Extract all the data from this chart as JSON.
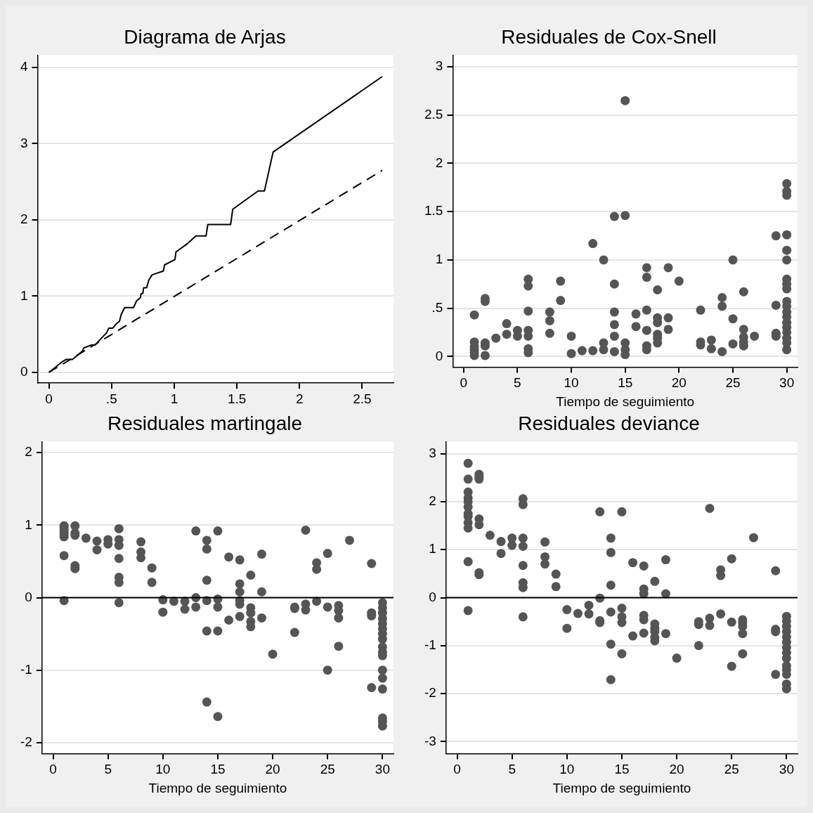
{
  "chart_data": [
    {
      "type": "line",
      "title": "Diagrama de Arjas",
      "xlim": [
        -0.09,
        2.75
      ],
      "ylim": [
        -0.14,
        4.16
      ],
      "xticks": [
        0,
        {
          "value": 0.5,
          "label": ".5"
        },
        1,
        1.5,
        2,
        2.5
      ],
      "yticks": [
        0,
        1,
        2,
        3,
        4
      ],
      "grid": "y",
      "marker": "none",
      "series": [
        {
          "color": "#000000",
          "line_style": "solid",
          "x": [
            0,
            0.075,
            0.106,
            0.136,
            0.187,
            0.217,
            0.268,
            0.278,
            0.34,
            0.37,
            0.42,
            0.46,
            0.478,
            0.508,
            0.539,
            0.563,
            0.577,
            0.604,
            0.675,
            0.7,
            0.73,
            0.736,
            0.75,
            0.756,
            0.78,
            0.797,
            0.823,
            0.913,
            0.923,
            1.006,
            1.014,
            1.106,
            1.173,
            1.254,
            1.268,
            1.45,
            1.467,
            1.67,
            1.72,
            1.789,
            2.66
          ],
          "values": [
            0,
            0.1,
            0.14,
            0.17,
            0.17,
            0.21,
            0.28,
            0.32,
            0.36,
            0.36,
            0.45,
            0.52,
            0.58,
            0.58,
            0.64,
            0.67,
            0.76,
            0.85,
            0.85,
            0.94,
            0.98,
            1.03,
            1.04,
            1.11,
            1.11,
            1.21,
            1.28,
            1.33,
            1.41,
            1.48,
            1.58,
            1.69,
            1.79,
            1.79,
            1.94,
            1.94,
            2.14,
            2.38,
            2.38,
            2.89,
            3.88
          ]
        },
        {
          "color": "#000000",
          "line_style": "dashed",
          "x": [
            0,
            2.66
          ],
          "values": [
            0,
            2.65
          ]
        }
      ]
    },
    {
      "type": "scatter",
      "title": "Residuales de Cox-Snell",
      "xlabel": "Tiempo de seguimiento",
      "xlim": [
        -1,
        31
      ],
      "ylim": [
        -0.11,
        3.12
      ],
      "xticks": [
        0,
        5,
        10,
        15,
        20,
        25,
        30
      ],
      "yticks": [
        0,
        {
          "value": 0.5,
          "label": ".5"
        },
        1,
        1.5,
        2,
        2.5,
        3
      ],
      "grid": "y",
      "marker": "circle",
      "series": [
        {
          "color": "#555555",
          "x": [
            1,
            1,
            1,
            1,
            1,
            1,
            2,
            2,
            2,
            2,
            2,
            3,
            4,
            4,
            5,
            5,
            6,
            6,
            6,
            6,
            6,
            6,
            6,
            8,
            8,
            8,
            9,
            9,
            10,
            10,
            11,
            12,
            12,
            13,
            13,
            13,
            14,
            14,
            14,
            14,
            14,
            14,
            15,
            15,
            15,
            15,
            15,
            16,
            16,
            17,
            17,
            17,
            17,
            17,
            17,
            18,
            18,
            18,
            18,
            18,
            18,
            19,
            19,
            19,
            20,
            22,
            22,
            22,
            23,
            23,
            24,
            24,
            24,
            25,
            25,
            25,
            26,
            26,
            26,
            26,
            26,
            27,
            29,
            29,
            29,
            29,
            30,
            30,
            30,
            30,
            30,
            30,
            30,
            30,
            30,
            30,
            30,
            30,
            30,
            30,
            30,
            30,
            30,
            30,
            30
          ],
          "values": [
            0.43,
            0.15,
            0.1,
            0.07,
            0.04,
            0.01,
            0.6,
            0.57,
            0.14,
            0.11,
            0.01,
            0.19,
            0.34,
            0.23,
            0.27,
            0.21,
            0.8,
            0.73,
            0.47,
            0.27,
            0.21,
            0.08,
            0.04,
            0.46,
            0.37,
            0.24,
            0.78,
            0.58,
            0.21,
            0.03,
            0.06,
            1.17,
            0.06,
            1.0,
            0.14,
            0.07,
            1.45,
            0.75,
            0.46,
            0.33,
            0.21,
            0.05,
            2.65,
            1.46,
            0.14,
            0.07,
            0.02,
            0.44,
            0.31,
            0.92,
            0.82,
            0.48,
            0.27,
            0.11,
            0.07,
            0.69,
            0.4,
            0.35,
            0.23,
            0.19,
            0.14,
            0.92,
            0.4,
            0.28,
            0.78,
            0.48,
            0.15,
            0.12,
            0.17,
            0.08,
            0.61,
            0.52,
            0.05,
            1.0,
            0.39,
            0.13,
            0.67,
            0.28,
            0.2,
            0.15,
            0.11,
            0.21,
            1.25,
            0.53,
            0.24,
            0.21,
            1.79,
            1.71,
            1.67,
            1.26,
            1.1,
            1.0,
            0.8,
            0.75,
            0.7,
            0.57,
            0.52,
            0.46,
            0.41,
            0.35,
            0.3,
            0.25,
            0.19,
            0.14,
            0.07
          ]
        }
      ]
    },
    {
      "type": "scatter",
      "title": "Residuales martingale",
      "xlabel": "Tiempo de seguimiento",
      "xlim": [
        -1,
        31
      ],
      "ylim": [
        -2.15,
        2.15
      ],
      "xticks": [
        0,
        5,
        10,
        15,
        20,
        25,
        30
      ],
      "yticks": [
        -2,
        -1,
        0,
        1,
        2
      ],
      "grid": "y",
      "marker": "circle",
      "ref_lines": [
        {
          "axis": "y",
          "value": 0,
          "color": "#000000"
        }
      ],
      "series": [
        {
          "color": "#555555",
          "x": [
            1,
            1,
            1,
            1,
            1,
            1,
            1,
            1,
            2,
            2,
            2,
            2,
            2,
            3,
            4,
            4,
            5,
            5,
            6,
            6,
            6,
            6,
            6,
            6,
            6,
            8,
            8,
            8,
            9,
            9,
            10,
            10,
            11,
            12,
            12,
            13,
            13,
            13,
            14,
            14,
            14,
            14,
            14,
            14,
            15,
            15,
            15,
            15,
            15,
            16,
            16,
            17,
            17,
            17,
            17,
            17,
            17,
            18,
            18,
            18,
            18,
            18,
            19,
            19,
            19,
            20,
            22,
            22,
            22,
            23,
            23,
            23,
            24,
            24,
            24,
            25,
            25,
            25,
            26,
            26,
            26,
            26,
            27,
            29,
            29,
            29,
            29,
            30,
            30,
            30,
            30,
            30,
            30,
            30,
            30,
            30,
            30,
            30,
            30,
            30,
            30,
            30,
            30,
            30
          ],
          "values": [
            0.99,
            0.96,
            0.93,
            0.9,
            0.87,
            0.84,
            0.58,
            -0.04,
            0.99,
            0.89,
            0.86,
            0.44,
            0.4,
            0.82,
            0.78,
            0.66,
            0.8,
            0.74,
            0.95,
            0.8,
            0.72,
            0.54,
            0.28,
            0.21,
            -0.07,
            0.77,
            0.63,
            0.55,
            0.41,
            0.21,
            -0.03,
            -0.2,
            -0.05,
            -0.05,
            -0.16,
            0.92,
            0.0,
            -0.13,
            0.79,
            0.67,
            0.24,
            -0.04,
            -0.46,
            -1.44,
            0.92,
            -0.02,
            -0.13,
            -0.46,
            -1.64,
            0.56,
            -0.31,
            0.52,
            0.19,
            0.08,
            -0.04,
            -0.09,
            -0.26,
            0.31,
            -0.14,
            -0.21,
            -0.33,
            -0.4,
            0.6,
            0.08,
            -0.28,
            -0.78,
            -0.13,
            -0.15,
            -0.48,
            0.93,
            -0.09,
            -0.17,
            0.48,
            0.39,
            -0.05,
            0.61,
            -0.13,
            -1.0,
            -0.11,
            -0.18,
            -0.28,
            -0.67,
            0.79,
            0.47,
            -0.21,
            -0.25,
            -1.24,
            -0.07,
            -0.14,
            -0.21,
            -0.29,
            -0.36,
            -0.43,
            -0.5,
            -0.57,
            -0.68,
            -0.75,
            -0.8,
            -1.0,
            -1.11,
            -1.26,
            -1.66,
            -1.71,
            -1.77
          ]
        }
      ]
    },
    {
      "type": "scatter",
      "title": "Residuales deviance",
      "xlabel": "Tiempo de seguimiento",
      "xlim": [
        -1,
        31
      ],
      "ylim": [
        -3.25,
        3.25
      ],
      "xticks": [
        0,
        5,
        10,
        15,
        20,
        25,
        30
      ],
      "yticks": [
        -3,
        -2,
        -1,
        0,
        1,
        2,
        3
      ],
      "grid": "y",
      "marker": "circle",
      "ref_lines": [
        {
          "axis": "y",
          "value": 0,
          "color": "#000000"
        }
      ],
      "series": [
        {
          "color": "#555555",
          "x": [
            1,
            1,
            1,
            1,
            1,
            1,
            1,
            1,
            1,
            1,
            1,
            1,
            2,
            2,
            2,
            2,
            2,
            2,
            2,
            3,
            4,
            4,
            5,
            5,
            6,
            6,
            6,
            6,
            6,
            6,
            6,
            6,
            8,
            8,
            8,
            9,
            9,
            10,
            10,
            11,
            12,
            12,
            13,
            13,
            13,
            13,
            14,
            14,
            14,
            14,
            14,
            14,
            15,
            15,
            15,
            15,
            15,
            16,
            16,
            17,
            17,
            17,
            17,
            17,
            17,
            18,
            18,
            18,
            18,
            18,
            18,
            19,
            19,
            19,
            20,
            22,
            22,
            22,
            23,
            23,
            23,
            24,
            24,
            24,
            25,
            25,
            25,
            26,
            26,
            26,
            26,
            26,
            27,
            29,
            29,
            29,
            29,
            30,
            30,
            30,
            30,
            30,
            30,
            30,
            30,
            30,
            30,
            30,
            30,
            30,
            30
          ],
          "values": [
            2.8,
            2.47,
            2.2,
            2.08,
            2.0,
            1.89,
            1.75,
            1.69,
            1.56,
            1.45,
            0.75,
            -0.27,
            2.57,
            2.51,
            2.47,
            1.64,
            1.52,
            0.52,
            0.48,
            1.3,
            1.17,
            0.92,
            1.24,
            1.09,
            2.06,
            1.94,
            1.24,
            1.07,
            0.67,
            0.31,
            0.21,
            -0.4,
            1.16,
            0.85,
            0.7,
            0.49,
            0.23,
            -0.25,
            -0.64,
            -0.33,
            -0.16,
            -0.34,
            1.79,
            -0.01,
            -0.48,
            -0.52,
            1.24,
            0.94,
            0.26,
            -0.3,
            -0.97,
            -1.71,
            1.79,
            -0.22,
            -0.4,
            -0.52,
            -1.17,
            0.73,
            -0.8,
            0.66,
            0.18,
            0.08,
            -0.37,
            -0.46,
            -0.74,
            0.34,
            -0.55,
            -0.64,
            -0.71,
            -0.83,
            -0.9,
            0.79,
            0.08,
            -0.75,
            -1.26,
            -0.5,
            -0.56,
            -1.0,
            1.86,
            -0.43,
            -0.58,
            0.58,
            0.46,
            -0.34,
            0.81,
            -0.51,
            -1.43,
            -0.46,
            -0.52,
            -0.6,
            -0.75,
            -1.17,
            1.25,
            0.56,
            -0.66,
            -0.71,
            -1.6,
            -0.39,
            -0.49,
            -0.6,
            -0.71,
            -0.82,
            -0.93,
            -1.04,
            -1.15,
            -1.26,
            -1.42,
            -1.5,
            -1.6,
            -1.8,
            -1.9
          ]
        }
      ]
    }
  ]
}
